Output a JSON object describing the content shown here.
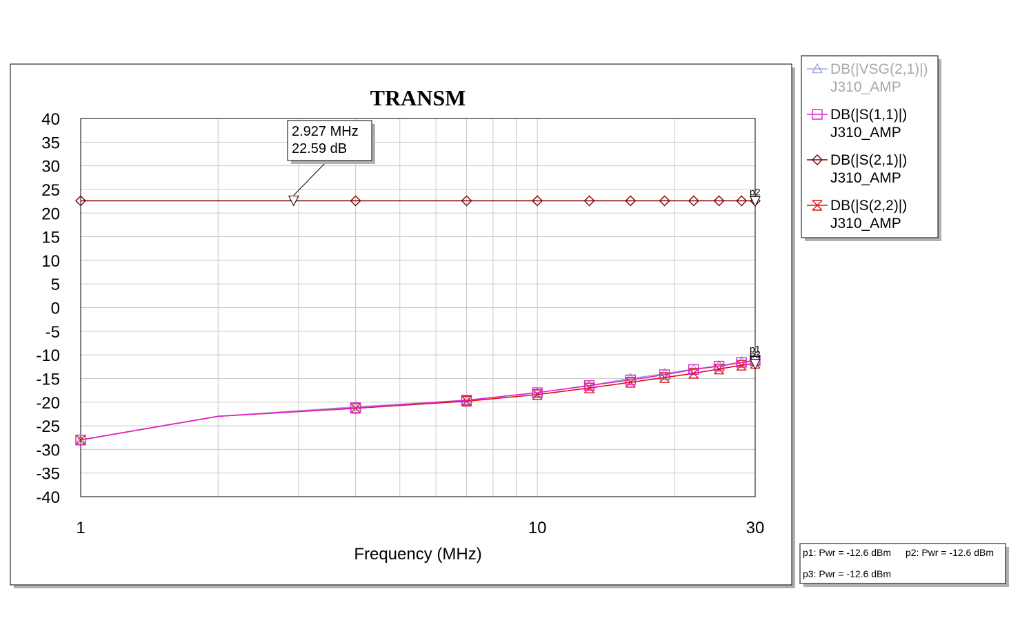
{
  "chart_data": {
    "type": "line",
    "title": "TRANSM",
    "xlabel": "Frequency (MHz)",
    "ylabel": "",
    "x_scale": "log",
    "xlim": [
      1,
      30
    ],
    "ylim": [
      -40,
      40
    ],
    "x_ticks": [
      1,
      10,
      30
    ],
    "y_ticks": [
      40,
      35,
      30,
      25,
      20,
      15,
      10,
      5,
      0,
      -5,
      -10,
      -15,
      -20,
      -25,
      -30,
      -35,
      -40
    ],
    "grid": true,
    "legend_position": "right",
    "series": [
      {
        "name": "DB(|VSG(2,1)|)",
        "source": "J310_AMP",
        "color": "#a0a8d8",
        "marker": "triangle-up",
        "x": [
          1,
          2,
          4,
          7,
          10,
          13,
          16,
          19,
          22,
          25,
          28,
          30
        ],
        "values": [
          -28.0,
          -23.0,
          -21.0,
          -19.6,
          -18.0,
          -16.5,
          -15.0,
          -14.0,
          -13.0,
          -12.3,
          -11.5,
          -11.2
        ]
      },
      {
        "name": "DB(|S(1,1)|)",
        "source": "J310_AMP",
        "color": "#e020d0",
        "marker": "square",
        "x": [
          1,
          2,
          4,
          7,
          10,
          13,
          16,
          19,
          22,
          25,
          28,
          30
        ],
        "values": [
          -28.0,
          -23.0,
          -21.2,
          -19.6,
          -18.0,
          -16.5,
          -15.3,
          -14.2,
          -13.1,
          -12.4,
          -11.6,
          -11.2
        ]
      },
      {
        "name": "DB(|S(2,1)|)",
        "source": "J310_AMP",
        "color": "#800000",
        "marker": "diamond",
        "x": [
          1,
          2,
          4,
          7,
          10,
          13,
          16,
          19,
          22,
          25,
          28,
          30
        ],
        "values": [
          22.59,
          22.59,
          22.59,
          22.59,
          22.59,
          22.59,
          22.59,
          22.59,
          22.59,
          22.59,
          22.59,
          22.59
        ]
      },
      {
        "name": "DB(|S(2,2)|)",
        "source": "J310_AMP",
        "color": "#e01010",
        "marker": "x-bar",
        "x": [
          1,
          2,
          4,
          7,
          10,
          13,
          16,
          19,
          22,
          25,
          28,
          30
        ],
        "values": [
          -28.0,
          -23.0,
          -21.3,
          -19.8,
          -18.4,
          -17.0,
          -15.8,
          -14.8,
          -13.9,
          -13.0,
          -12.2,
          -11.8
        ]
      }
    ],
    "marker_annotation": {
      "line1": "2.927 MHz",
      "line2": "22.59 dB",
      "x": 2.927,
      "y": 22.59
    },
    "end_tags": [
      {
        "label": "p2",
        "x": 30,
        "y": 22.59
      },
      {
        "label": "p1",
        "x": 30,
        "y": -11.2
      },
      {
        "label": "p3",
        "x": 30,
        "y": -11.8
      }
    ],
    "power_notes": [
      "p1: Pwr = -12.6 dBm",
      "p2: Pwr = -12.6 dBm",
      "p3: Pwr = -12.6 dBm"
    ]
  }
}
